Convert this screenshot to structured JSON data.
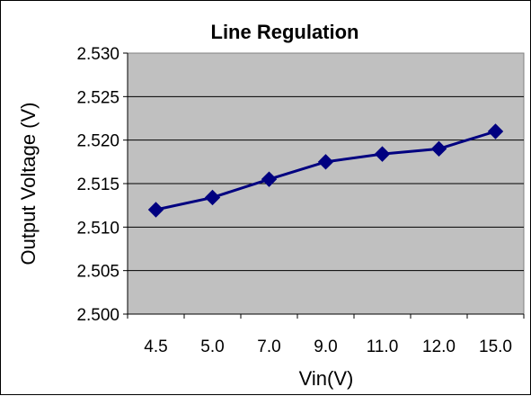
{
  "chart_data": {
    "type": "line",
    "title": "Line Regulation",
    "xlabel": "Vin(V)",
    "ylabel": "Output Voltage (V)",
    "categories": [
      "4.5",
      "5.0",
      "7.0",
      "9.0",
      "11.0",
      "12.0",
      "15.0"
    ],
    "series": [
      {
        "values": [
          2.512,
          2.5134,
          2.5155,
          2.5175,
          2.5184,
          2.519,
          2.521
        ],
        "color": "#000080",
        "marker": "diamond"
      }
    ],
    "ylim": [
      2.5,
      2.53
    ],
    "yticks": [
      "2.500",
      "2.505",
      "2.510",
      "2.515",
      "2.520",
      "2.525",
      "2.530"
    ],
    "grid": true,
    "legend": "none",
    "plot_background": "#c0c0c0"
  }
}
